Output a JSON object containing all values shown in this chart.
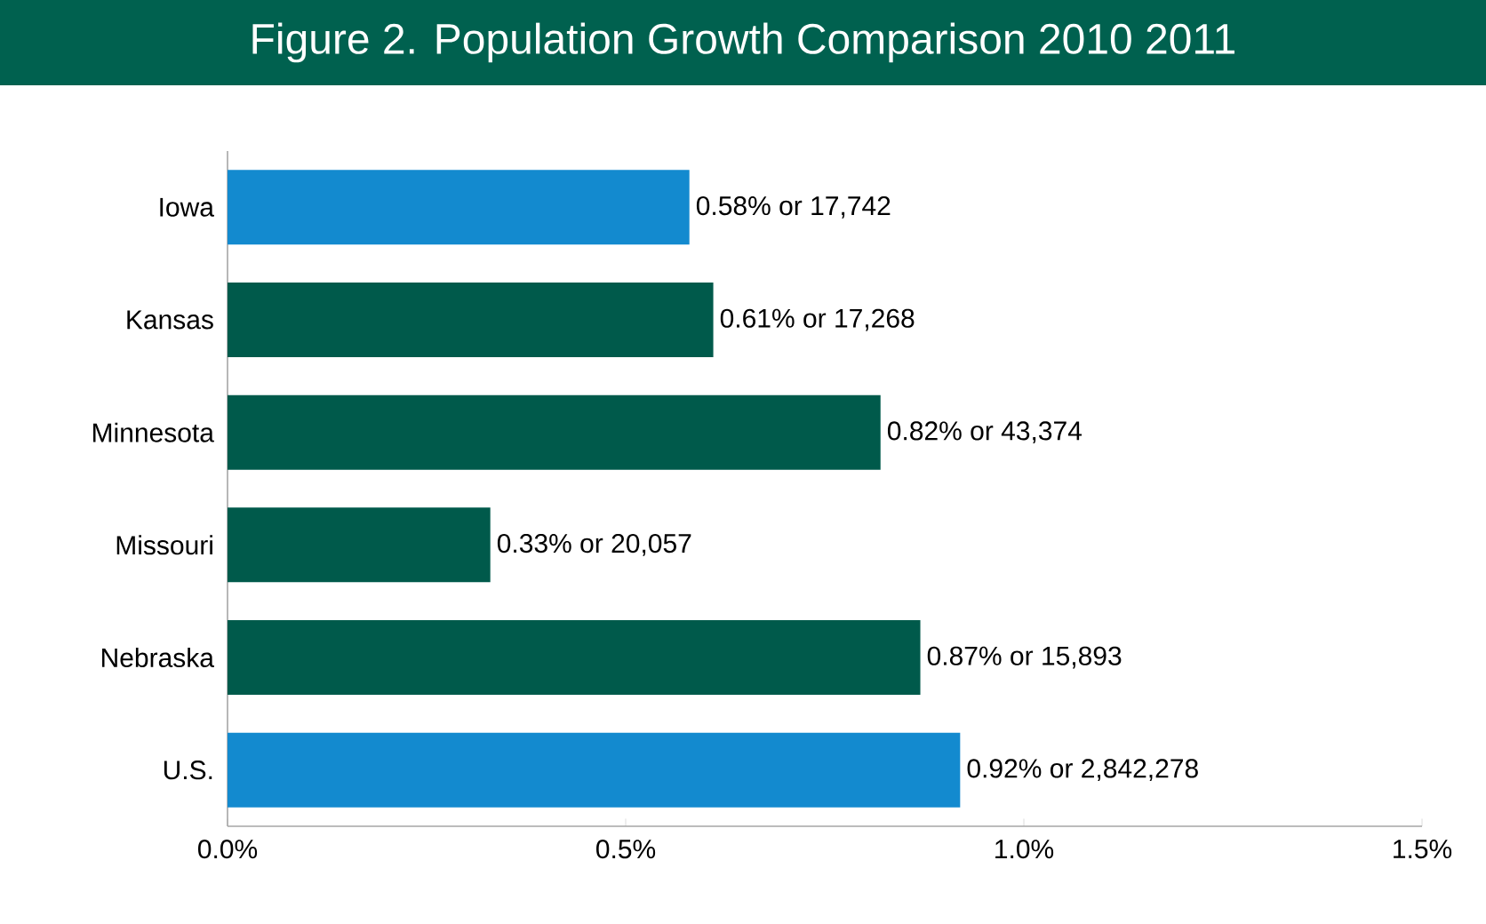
{
  "chart_data": {
    "type": "bar",
    "orientation": "horizontal",
    "title": "Figure 2. Population Growth Comparison 2010 2011",
    "categories": [
      "Iowa",
      "Kansas",
      "Minnesota",
      "Missouri",
      "Nebraska",
      "U.S."
    ],
    "values": [
      0.58,
      0.61,
      0.82,
      0.33,
      0.87,
      0.92
    ],
    "colors": [
      "#138acf",
      "#005a4b",
      "#005a4b",
      "#005a4b",
      "#005a4b",
      "#138acf"
    ],
    "value_labels": [
      "0.58% or 17,742",
      "0.61% or 17,268",
      "0.82% or 43,374",
      "0.33% or 20,057",
      "0.87% or 15,893",
      "0.92% or 2,842,278"
    ],
    "xlim": [
      0,
      1.5
    ],
    "xticks": [
      {
        "value": 0,
        "label": "0.0%"
      },
      {
        "value": 0.5,
        "label": "0.5%"
      },
      {
        "value": 1.0,
        "label": "1.0%"
      },
      {
        "value": 1.5,
        "label": "1.5%"
      }
    ]
  }
}
